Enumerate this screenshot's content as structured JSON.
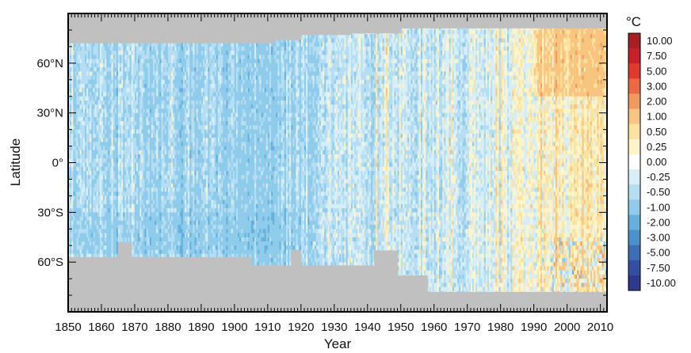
{
  "chart_data": {
    "type": "heatmap",
    "title": "",
    "xlabel": "Year",
    "ylabel": "Latitude",
    "xlim": [
      1850,
      2012
    ],
    "ylim": [
      -90,
      90
    ],
    "x_ticks": [
      1850,
      1860,
      1870,
      1880,
      1890,
      1900,
      1910,
      1920,
      1930,
      1940,
      1950,
      1960,
      1970,
      1980,
      1990,
      2000,
      2010
    ],
    "x_tick_labels": [
      "1850",
      "1860",
      "1870",
      "1880",
      "1890",
      "1900",
      "1910",
      "1920",
      "1930",
      "1940",
      "1950",
      "1960",
      "1970",
      "1980",
      "1990",
      "2000",
      "2010"
    ],
    "y_ticks": [
      60,
      30,
      0,
      -30,
      -60
    ],
    "y_tick_labels": [
      "60°N",
      "30°N",
      "0°",
      "30°S",
      "60°S"
    ],
    "colorbar": {
      "unit": "°C",
      "labels": [
        "10.00",
        "7.50",
        "5.00",
        "3.00",
        "2.00",
        "1.00",
        "0.50",
        "0.25",
        "0.00",
        "-0.25",
        "-0.50",
        "-1.00",
        "-2.00",
        "-3.00",
        "-5.00",
        "-7.50",
        "-10.00"
      ],
      "colors": [
        "#a51f24",
        "#c8202a",
        "#e03a2f",
        "#ea6a43",
        "#f19a5e",
        "#f7c57f",
        "#fbe29f",
        "#fdf4c9",
        "#ffffff",
        "#d8eef7",
        "#b6def2",
        "#8fcbea",
        "#66b0de",
        "#4a92cd",
        "#3c6fb8",
        "#344ea3",
        "#2f3a8f"
      ]
    },
    "missing_data_color": "#c0c0c0",
    "anomaly_trend": {
      "description_years": [
        1850,
        1880,
        1910,
        1940,
        1970,
        2000,
        2010
      ],
      "mean_anomaly": [
        -0.45,
        -0.5,
        -0.6,
        -0.2,
        -0.15,
        0.25,
        0.45
      ]
    },
    "data_coverage": {
      "north_limit": [
        {
          "from": 1850,
          "to": 1912,
          "lat": 72
        },
        {
          "from": 1912,
          "to": 1920,
          "lat": 74
        },
        {
          "from": 1920,
          "to": 1935,
          "lat": 77
        },
        {
          "from": 1935,
          "to": 1950,
          "lat": 78
        },
        {
          "from": 1950,
          "to": 2012,
          "lat": 81
        }
      ],
      "south_limit": [
        {
          "from": 1850,
          "to": 1865,
          "lat": -57
        },
        {
          "from": 1865,
          "to": 1869,
          "lat": -48
        },
        {
          "from": 1869,
          "to": 1905,
          "lat": -57
        },
        {
          "from": 1905,
          "to": 1917,
          "lat": -62
        },
        {
          "from": 1917,
          "to": 1920,
          "lat": -53
        },
        {
          "from": 1920,
          "to": 1942,
          "lat": -62
        },
        {
          "from": 1942,
          "to": 1949,
          "lat": -53
        },
        {
          "from": 1949,
          "to": 1958,
          "lat": -68
        },
        {
          "from": 1958,
          "to": 2012,
          "lat": -78
        }
      ]
    }
  }
}
